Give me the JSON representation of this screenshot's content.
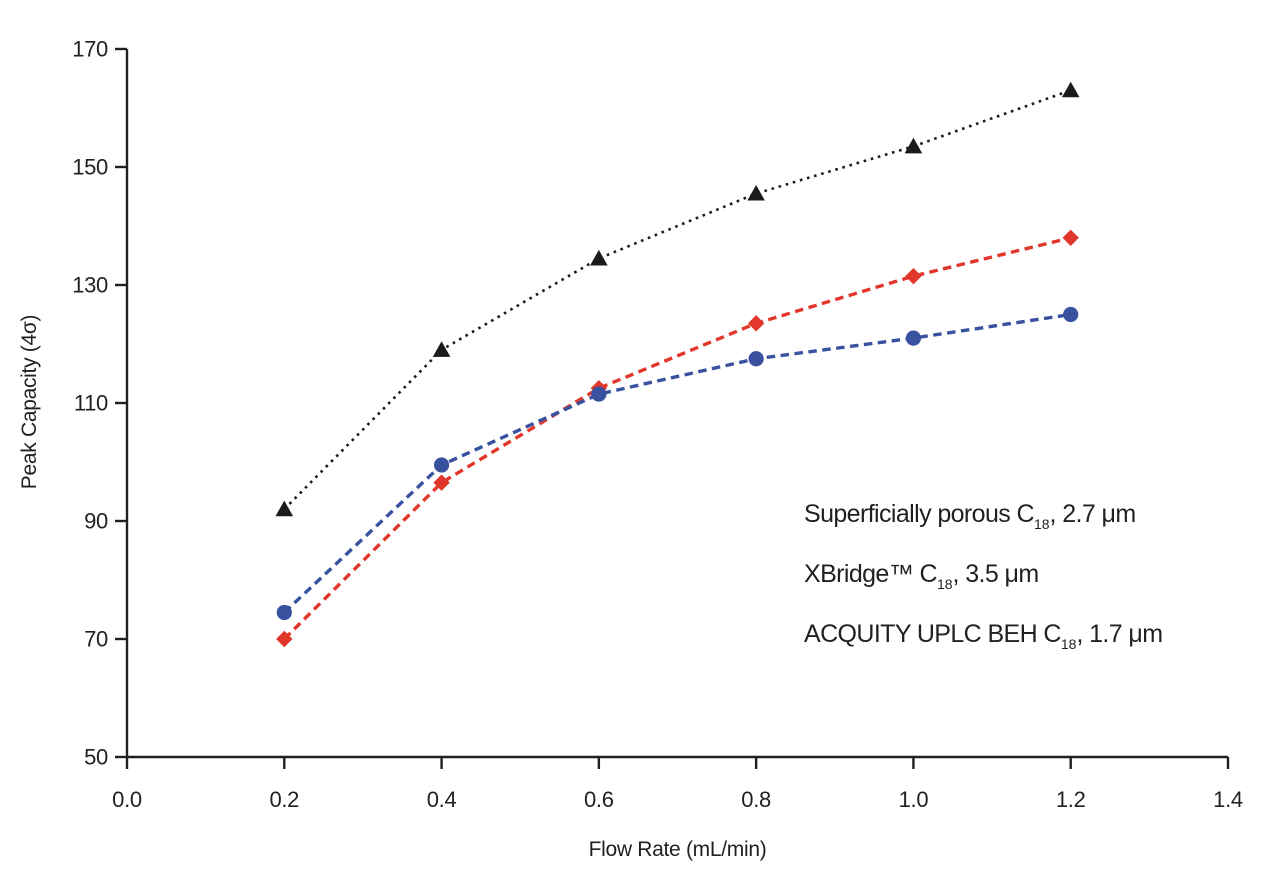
{
  "figure": {
    "background": "#ffffff",
    "text_color": "#231f20"
  },
  "chart_data": {
    "type": "line",
    "title": "",
    "xlabel": "Flow Rate (mL/min)",
    "ylabel": "Peak Capacity (4σ)",
    "xlim": [
      0.0,
      1.4
    ],
    "ylim": [
      50,
      170
    ],
    "xticks": [
      "0.0",
      "0.2",
      "0.4",
      "0.6",
      "0.8",
      "1.0",
      "1.2",
      "1.4"
    ],
    "yticks": [
      "50",
      "70",
      "90",
      "110",
      "130",
      "150",
      "170"
    ],
    "grid": false,
    "legend_position": "inside lower-right (text lines only, no markers)",
    "axis_color": "#231f20",
    "x": [
      0.2,
      0.4,
      0.6,
      0.8,
      1.0,
      1.2
    ],
    "series": [
      {
        "name": "Superficially porous C18, 2.7 μm",
        "marker": "triangle",
        "color": "#1b1b1b",
        "line_style": "dotted",
        "values": [
          92,
          119,
          134.5,
          145.5,
          153.5,
          163
        ]
      },
      {
        "name": "XBridge™ C18, 3.5 μm",
        "marker": "diamond",
        "color": "#e1372b",
        "line_style": "dashed",
        "values": [
          70,
          96.5,
          112.5,
          123.5,
          131.5,
          138
        ]
      },
      {
        "name": "ACQUITY UPLC BEH C18, 1.7 μm",
        "marker": "circle",
        "color": "#3952a0",
        "line_style": "dashed",
        "values": [
          74.5,
          99.5,
          111.5,
          117.5,
          121,
          125
        ]
      }
    ]
  },
  "legend": {
    "lines": [
      {
        "pre": "Superficially porous C",
        "sub": "18",
        "post": ", 2.7 μm"
      },
      {
        "pre": "XBridge™ C",
        "sub": "18",
        "post": ", 3.5 μm"
      },
      {
        "pre": "ACQUITY UPLC BEH C",
        "sub": "18",
        "post": ", 1.7 μm"
      }
    ]
  }
}
